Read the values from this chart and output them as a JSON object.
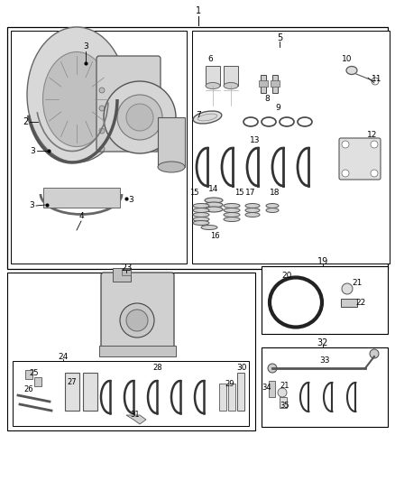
{
  "bg_color": "#ffffff",
  "line_color": "#000000",
  "figsize": [
    4.38,
    5.33
  ],
  "dpi": 100
}
